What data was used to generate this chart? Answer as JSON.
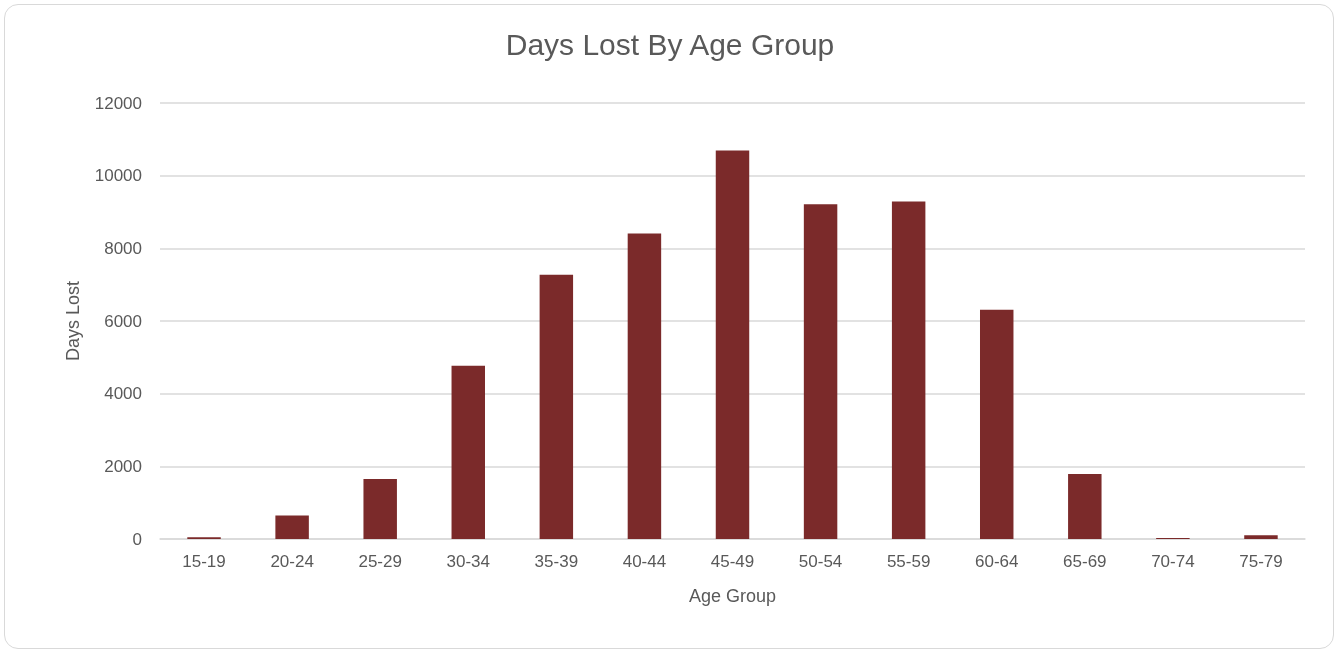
{
  "chart_data": {
    "type": "bar",
    "title": "Days Lost By Age Group",
    "xlabel": "Age Group",
    "ylabel": "Days Lost",
    "categories": [
      "15-19",
      "20-24",
      "25-29",
      "30-34",
      "35-39",
      "40-44",
      "45-49",
      "50-54",
      "55-59",
      "60-64",
      "65-69",
      "70-74",
      "75-79"
    ],
    "values": [
      50,
      650,
      1650,
      4770,
      7270,
      8410,
      10690,
      9210,
      9290,
      6310,
      1790,
      30,
      100
    ],
    "color": "#7b2a2a",
    "ylim": [
      0,
      12000
    ],
    "yticks": [
      0,
      2000,
      4000,
      6000,
      8000,
      10000,
      12000
    ],
    "grid": "y"
  }
}
